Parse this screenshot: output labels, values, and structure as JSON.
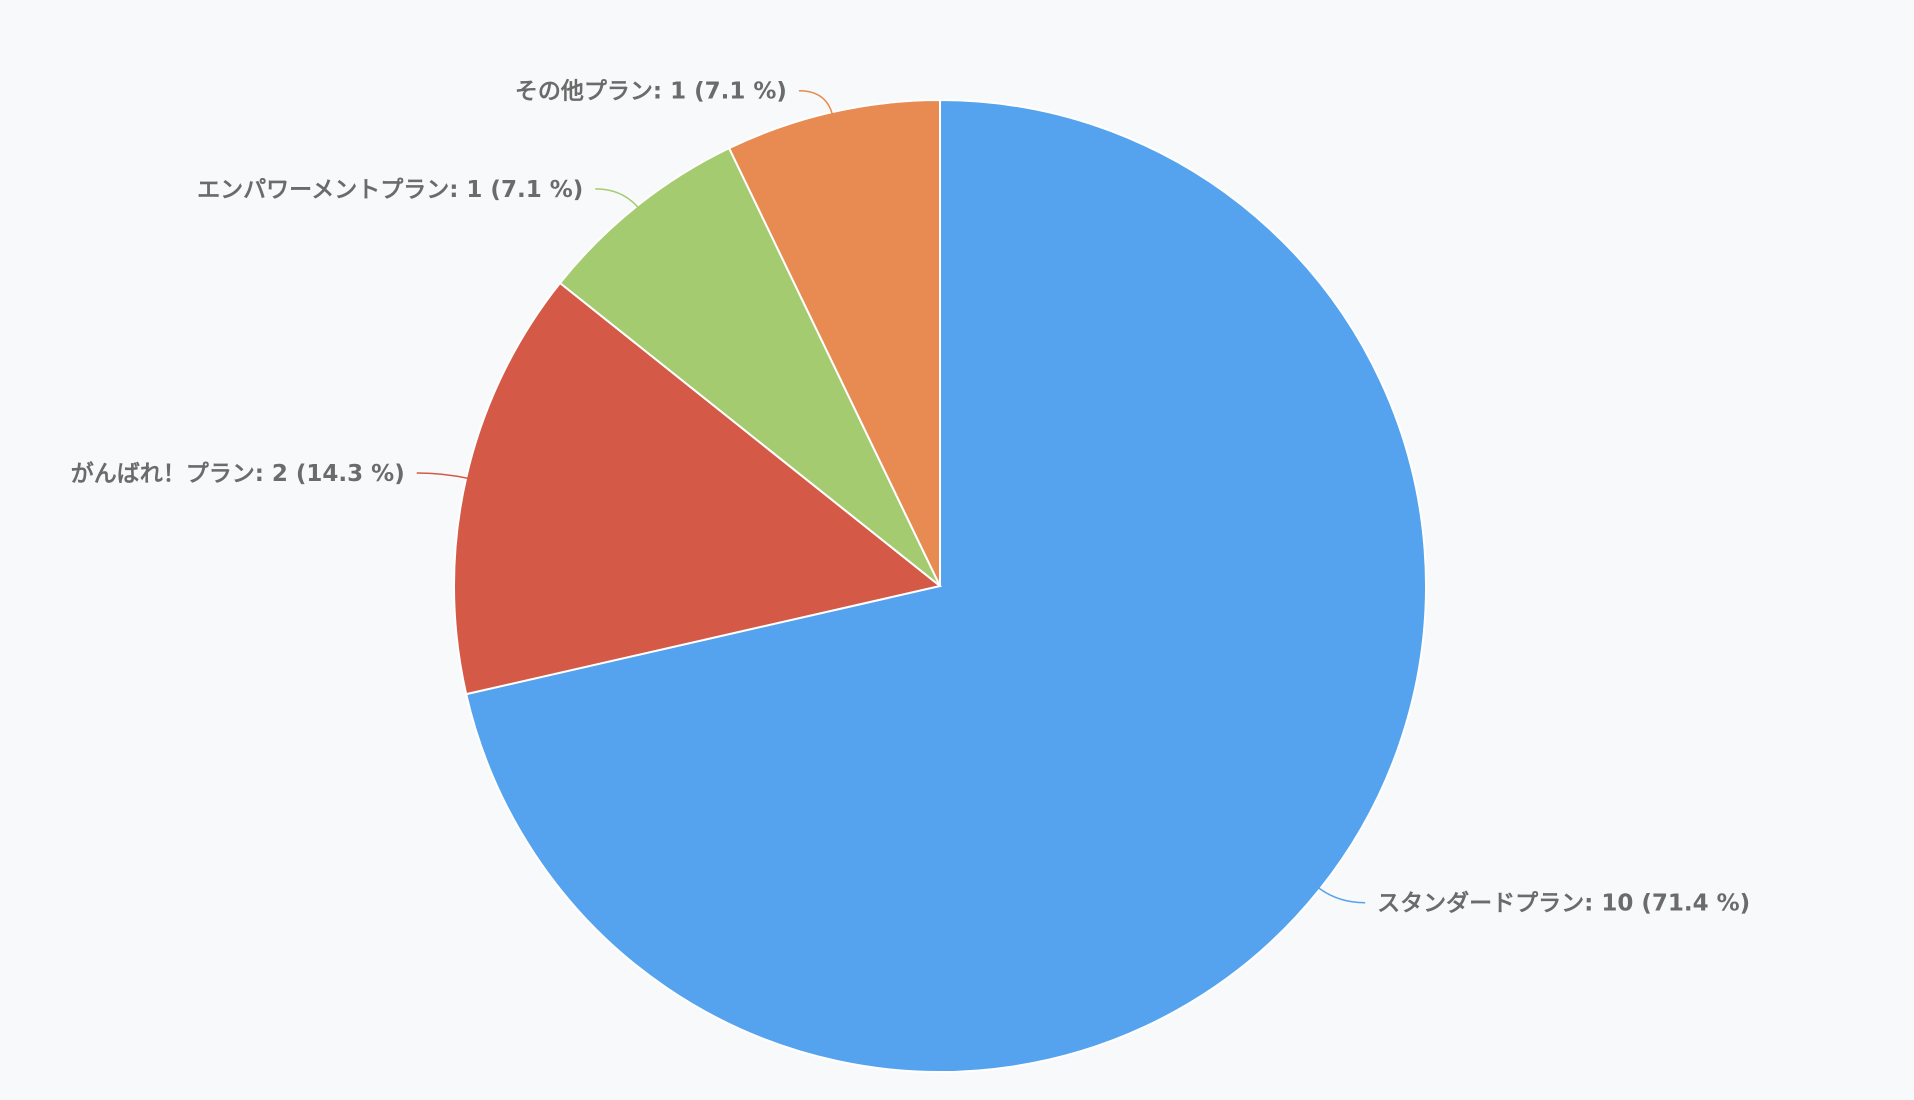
{
  "chart_data": {
    "type": "pie",
    "start_angle_deg": 0,
    "direction": "clockwise",
    "slices": [
      {
        "name": "スタンダードプラン",
        "value": 10,
        "percent": 71.4,
        "label": "スタンダードプラン: 10 (71.4 %)",
        "color": "#55a3ee"
      },
      {
        "name": "がんばれ！プラン",
        "value": 2,
        "percent": 14.3,
        "label": "がんばれ！プラン: 2 (14.3 %)",
        "color": "#d45a47"
      },
      {
        "name": "エンパワーメントプラン",
        "value": 1,
        "percent": 7.1,
        "label": "エンパワーメントプラン: 1 (7.1 %)",
        "color": "#a5cb70"
      },
      {
        "name": "その他プラン",
        "value": 1,
        "percent": 7.1,
        "label": "その他プラン: 1 (7.1 %)",
        "color": "#e88b53"
      }
    ]
  }
}
